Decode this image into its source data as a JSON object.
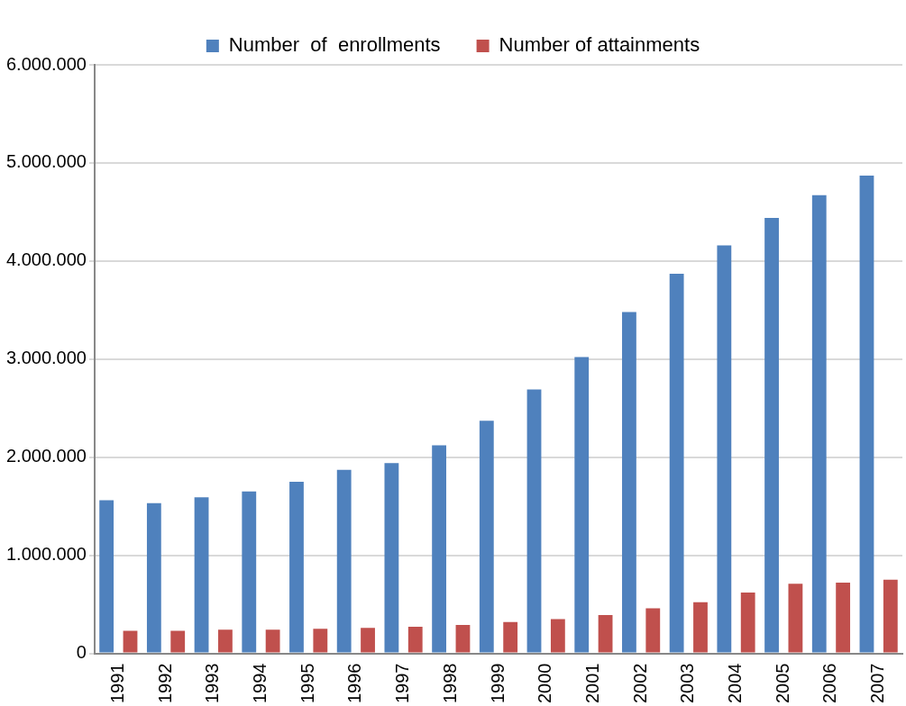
{
  "chart_data": {
    "type": "bar",
    "categories": [
      "1991",
      "1992",
      "1993",
      "1994",
      "1995",
      "1996",
      "1997",
      "1998",
      "1999",
      "2000",
      "2001",
      "2002",
      "2003",
      "2004",
      "2005",
      "2006",
      "2007"
    ],
    "series": [
      {
        "name": "Number  of  enrollments",
        "color": "#4f81bd",
        "values": [
          1560000,
          1530000,
          1590000,
          1650000,
          1750000,
          1870000,
          1940000,
          2120000,
          2370000,
          2690000,
          3020000,
          3480000,
          3870000,
          4160000,
          4440000,
          4670000,
          4870000
        ]
      },
      {
        "name": "Number of attainments",
        "color": "#c0504d",
        "values": [
          230000,
          230000,
          240000,
          240000,
          250000,
          260000,
          270000,
          290000,
          320000,
          350000,
          390000,
          460000,
          520000,
          620000,
          710000,
          720000,
          750000
        ]
      }
    ],
    "ylim": [
      0,
      6000000
    ],
    "yticks": [
      {
        "value": 0,
        "label": "0"
      },
      {
        "value": 1000000,
        "label": "1.000.000"
      },
      {
        "value": 2000000,
        "label": "2.000.000"
      },
      {
        "value": 3000000,
        "label": "3.000.000"
      },
      {
        "value": 4000000,
        "label": "4.000.000"
      },
      {
        "value": 5000000,
        "label": "5.000.000"
      },
      {
        "value": 6000000,
        "label": "6.000.000"
      }
    ],
    "grid": "y",
    "legend": "top"
  }
}
